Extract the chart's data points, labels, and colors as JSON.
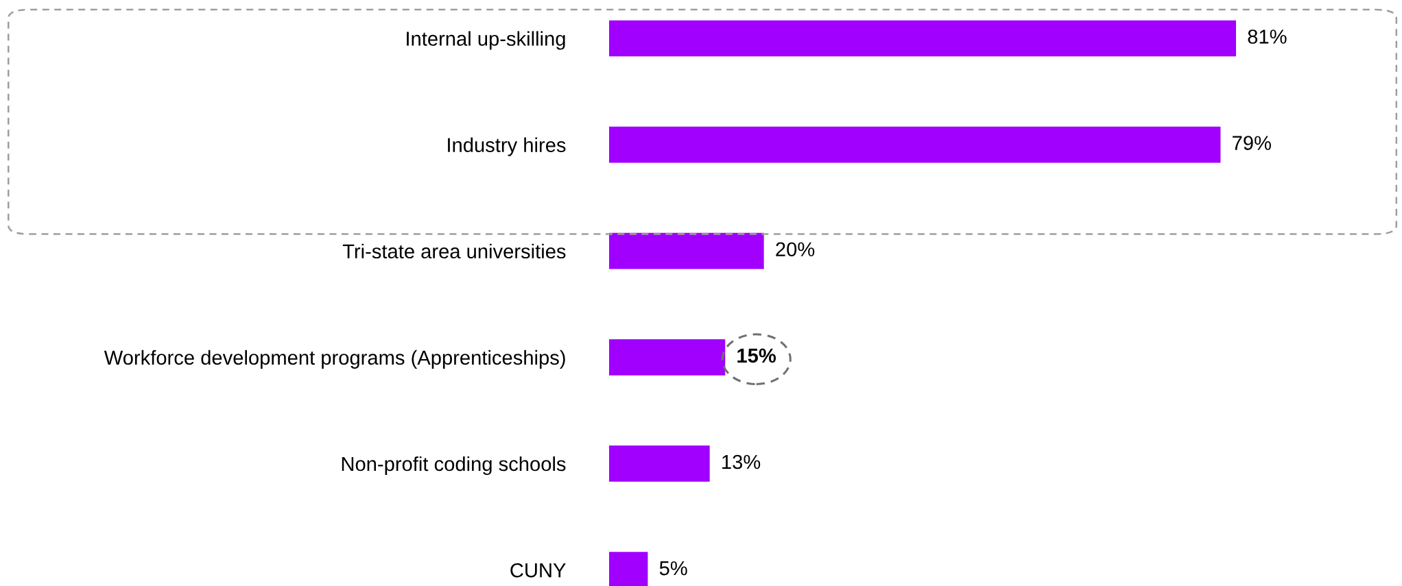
{
  "chart_data": {
    "type": "bar",
    "orientation": "horizontal",
    "categories": [
      "Internal up-skilling",
      "Industry hires",
      "Tri-state area universities",
      "Workforce development programs (Apprenticeships)",
      "Non-profit coding schools",
      "CUNY"
    ],
    "values": [
      81,
      79,
      20,
      15,
      13,
      5
    ],
    "value_labels": [
      "81%",
      "79%",
      "20%",
      "15%",
      "13%",
      "5%"
    ],
    "color": "#a100ff"
  }
}
